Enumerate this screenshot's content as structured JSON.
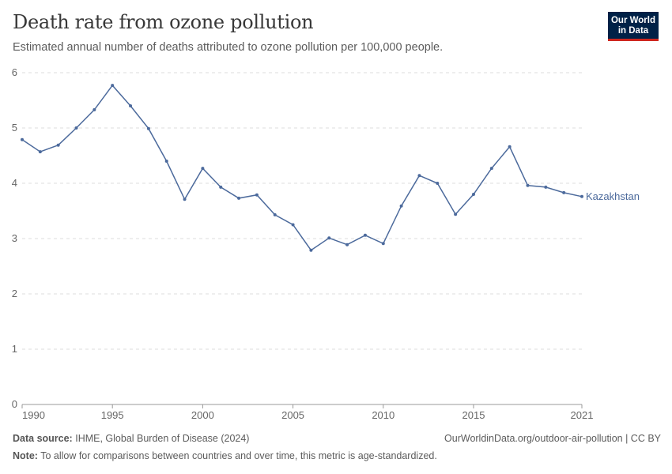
{
  "header": {
    "title": "Death rate from ozone pollution",
    "subtitle": "Estimated annual number of deaths attributed to ozone pollution per 100,000 people.",
    "logo_text": "Our World in Data"
  },
  "chart_data": {
    "type": "line",
    "title": "Death rate from ozone pollution",
    "ylim": [
      0,
      6
    ],
    "xlim": [
      1990,
      2021
    ],
    "yticks": [
      "0",
      "1",
      "2",
      "3",
      "4",
      "5",
      "6"
    ],
    "xticks": [
      "1990",
      "1995",
      "2000",
      "2005",
      "2010",
      "2015",
      "2021"
    ],
    "grid": "horizontal dashed",
    "color": "#4c6a9c",
    "series": [
      {
        "name": "Kazakhstan",
        "x": [
          1990,
          1991,
          1992,
          1993,
          1994,
          1995,
          1996,
          1997,
          1998,
          1999,
          2000,
          2001,
          2002,
          2003,
          2004,
          2005,
          2006,
          2007,
          2008,
          2009,
          2010,
          2011,
          2012,
          2013,
          2014,
          2015,
          2016,
          2017,
          2018,
          2019,
          2020,
          2021
        ],
        "values": [
          4.79,
          4.57,
          4.69,
          5.0,
          5.33,
          5.77,
          5.4,
          4.99,
          4.4,
          3.71,
          4.27,
          3.93,
          3.73,
          3.79,
          3.43,
          3.25,
          2.79,
          3.01,
          2.89,
          3.06,
          2.91,
          3.59,
          4.14,
          4.0,
          3.44,
          3.8,
          4.27,
          4.66,
          3.96,
          3.93,
          3.83,
          3.76
        ]
      }
    ]
  },
  "footer": {
    "source_label": "Data source:",
    "source": "IHME, Global Burden of Disease (2024)",
    "url": "OurWorldinData.org/outdoor-air-pollution | CC BY",
    "note_label": "Note:",
    "note": "To allow for comparisons between countries and over time, this metric is age-standardized."
  }
}
